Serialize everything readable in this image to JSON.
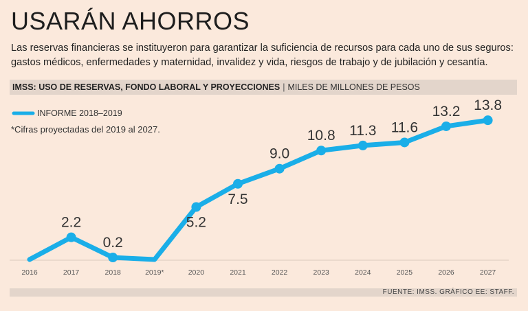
{
  "title": "USARÁN AHORROS",
  "subtitle": "Las reservas financieras se instituyeron para garantizar la suficiencia de recursos para cada uno de sus seguros: gastos médicos, enfermedades y maternidad, invalidez y vida, riesgos de trabajo y de jubilación y cesantía.",
  "header": {
    "bold": "IMSS: USO DE RESERVAS, FONDO LABORAL Y PROYECCIONES",
    "separator": "|",
    "units": "MILES DE MILLONES DE PESOS"
  },
  "footer": "FUENTE: IMSS. GRÁFICO EE: STAFF.",
  "colors": {
    "background": "#fbe9dc",
    "line": "#1aaee8",
    "bar": "#e3d5cb"
  },
  "chart_data": {
    "type": "line",
    "title": "IMSS: USO DE RESERVAS, FONDO LABORAL Y PROYECCIONES",
    "ylabel": "MILES DE MILLONES DE PESOS",
    "legend": "INFORME 2018–2019",
    "note": "*Cifras proyectadas del 2019 al 2027.",
    "categories": [
      "2016",
      "2017",
      "2018",
      "2019*",
      "2020",
      "2021",
      "2022",
      "2023",
      "2024",
      "2025",
      "2026",
      "2027"
    ],
    "values": [
      0,
      2.2,
      0.2,
      0,
      5.2,
      7.5,
      9.0,
      10.8,
      11.3,
      11.6,
      13.2,
      13.8
    ],
    "labels": [
      "",
      "2.2",
      "0.2",
      "",
      "5.2",
      "7.5",
      "9.0",
      "10.8",
      "11.3",
      "11.6",
      "13.2",
      "13.8"
    ],
    "ylim": [
      0,
      14
    ]
  }
}
